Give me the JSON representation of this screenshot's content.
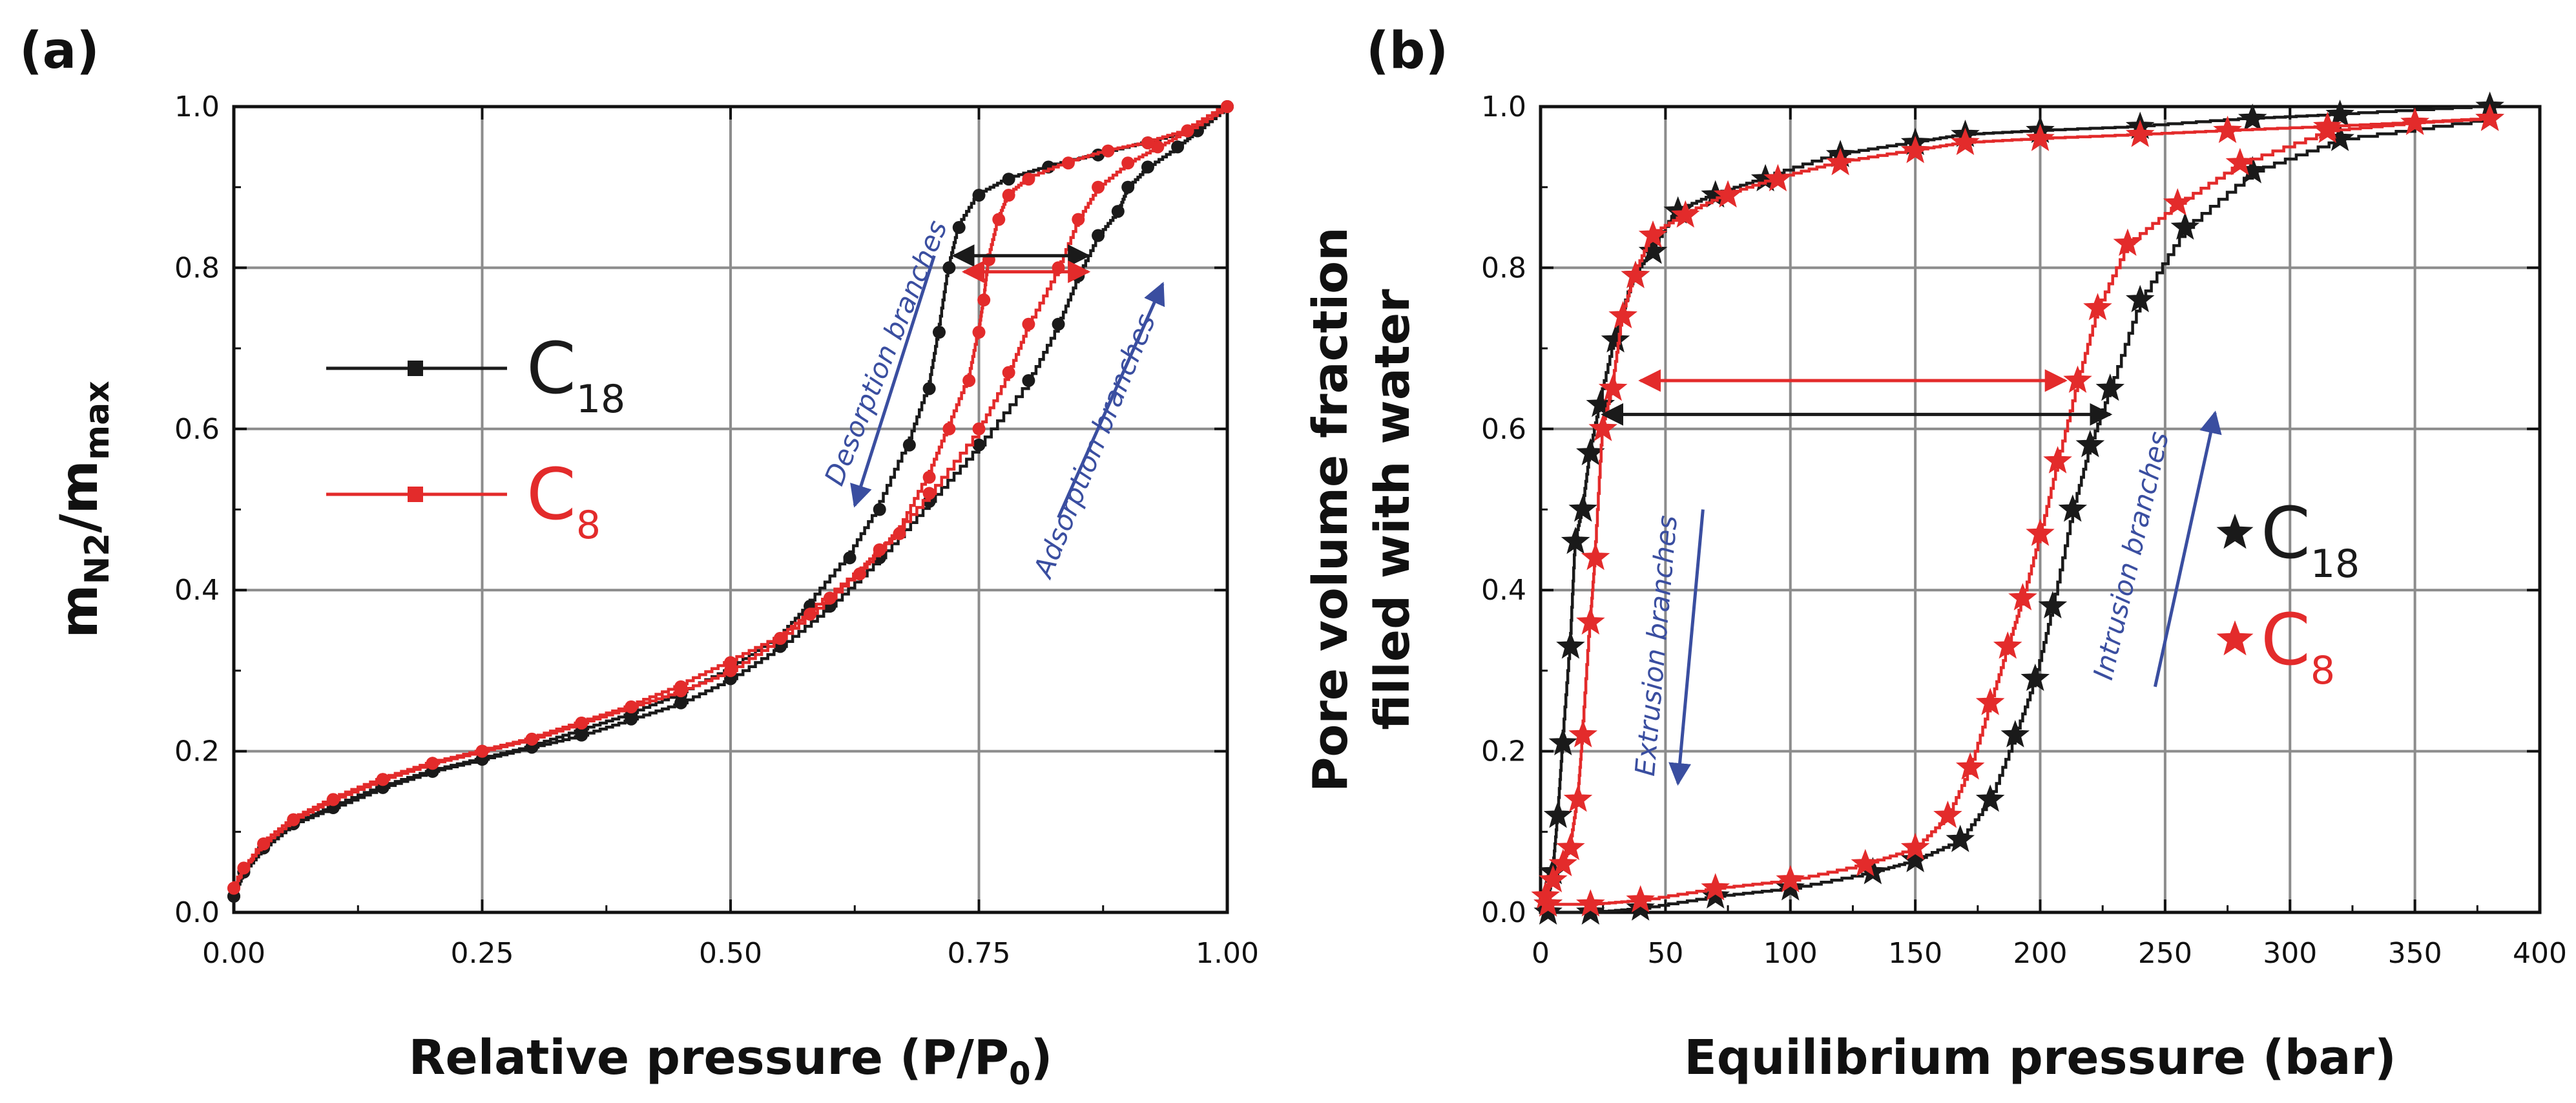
{
  "colors": {
    "c18": "#1a1a1a",
    "c8": "#e32b2b",
    "annotation": "#3a4ea0",
    "grid": "#8c8c8c"
  },
  "chart_data": [
    {
      "panel_label": "(a)",
      "type": "line",
      "title": "",
      "xlabel": "Relative pressure (P/P0)",
      "ylabel": "mN2/mmax",
      "xlabel_parts": {
        "main": "Relative pressure (P/P",
        "sub": "0",
        "end": ")"
      },
      "ylabel_parts": {
        "main": "m",
        "sub1": "N2",
        "mid": "/m",
        "sub2": "max"
      },
      "xlim": [
        0,
        1
      ],
      "ylim": [
        0,
        1
      ],
      "xticks": [
        "0.00",
        "0.25",
        "0.50",
        "0.75",
        "1.00"
      ],
      "yticks": [
        "0.0",
        "0.2",
        "0.4",
        "0.6",
        "0.8",
        "1.0"
      ],
      "grid": true,
      "legend": {
        "position": "middle-left",
        "entries": [
          {
            "series": "C18",
            "base": "C",
            "sub": "18"
          },
          {
            "series": "C8",
            "base": "C",
            "sub": "8"
          }
        ]
      },
      "series": [
        {
          "name": "C18 adsorption",
          "color_key": "c18",
          "x": [
            0.0,
            0.01,
            0.03,
            0.06,
            0.1,
            0.15,
            0.2,
            0.25,
            0.3,
            0.35,
            0.4,
            0.45,
            0.5,
            0.55,
            0.6,
            0.65,
            0.7,
            0.75,
            0.8,
            0.83,
            0.85,
            0.87,
            0.89,
            0.9,
            0.92,
            0.95,
            0.97,
            1.0
          ],
          "y": [
            0.02,
            0.05,
            0.08,
            0.11,
            0.13,
            0.155,
            0.175,
            0.19,
            0.205,
            0.22,
            0.24,
            0.26,
            0.29,
            0.33,
            0.38,
            0.44,
            0.51,
            0.58,
            0.66,
            0.73,
            0.79,
            0.84,
            0.87,
            0.9,
            0.925,
            0.95,
            0.97,
            1.0
          ]
        },
        {
          "name": "C18 desorption",
          "color_key": "c18",
          "x": [
            1.0,
            0.97,
            0.92,
            0.87,
            0.82,
            0.78,
            0.75,
            0.73,
            0.72,
            0.71,
            0.7,
            0.68,
            0.65,
            0.62,
            0.58,
            0.55,
            0.5,
            0.45,
            0.4,
            0.35,
            0.3,
            0.25,
            0.2,
            0.15,
            0.1,
            0.06,
            0.03,
            0.01,
            0.0
          ],
          "y": [
            1.0,
            0.97,
            0.955,
            0.94,
            0.925,
            0.91,
            0.89,
            0.85,
            0.8,
            0.72,
            0.65,
            0.58,
            0.5,
            0.44,
            0.38,
            0.34,
            0.3,
            0.27,
            0.245,
            0.225,
            0.205,
            0.19,
            0.175,
            0.155,
            0.13,
            0.11,
            0.08,
            0.05,
            0.02
          ]
        },
        {
          "name": "C8 adsorption",
          "color_key": "c8",
          "x": [
            0.0,
            0.01,
            0.03,
            0.06,
            0.1,
            0.15,
            0.2,
            0.25,
            0.3,
            0.35,
            0.4,
            0.45,
            0.5,
            0.55,
            0.6,
            0.65,
            0.7,
            0.75,
            0.78,
            0.8,
            0.83,
            0.85,
            0.87,
            0.9,
            0.93,
            0.96,
            1.0
          ],
          "y": [
            0.03,
            0.055,
            0.085,
            0.115,
            0.14,
            0.165,
            0.185,
            0.2,
            0.215,
            0.235,
            0.255,
            0.275,
            0.3,
            0.34,
            0.39,
            0.45,
            0.52,
            0.6,
            0.67,
            0.73,
            0.8,
            0.86,
            0.9,
            0.93,
            0.95,
            0.97,
            1.0
          ]
        },
        {
          "name": "C8 desorption",
          "color_key": "c8",
          "x": [
            1.0,
            0.96,
            0.92,
            0.88,
            0.84,
            0.8,
            0.78,
            0.77,
            0.76,
            0.755,
            0.75,
            0.74,
            0.72,
            0.7,
            0.67,
            0.63,
            0.58,
            0.55,
            0.5,
            0.45,
            0.4,
            0.35,
            0.3,
            0.25,
            0.2,
            0.15,
            0.1,
            0.06,
            0.03,
            0.0
          ],
          "y": [
            1.0,
            0.97,
            0.955,
            0.945,
            0.93,
            0.91,
            0.89,
            0.86,
            0.81,
            0.76,
            0.72,
            0.66,
            0.6,
            0.54,
            0.47,
            0.42,
            0.37,
            0.34,
            0.31,
            0.28,
            0.255,
            0.235,
            0.215,
            0.2,
            0.185,
            0.165,
            0.14,
            0.115,
            0.085,
            0.03
          ]
        }
      ],
      "arrows": [
        {
          "color_key": "c18",
          "from": [
            0.86,
            0.815
          ],
          "to": [
            0.725,
            0.815
          ],
          "kind": "double"
        },
        {
          "color_key": "c8",
          "from": [
            0.86,
            0.795
          ],
          "to": [
            0.735,
            0.795
          ],
          "kind": "double"
        },
        {
          "color_key": "annotation",
          "from": [
            0.705,
            0.815
          ],
          "to": [
            0.625,
            0.505
          ],
          "kind": "single"
        },
        {
          "color_key": "annotation",
          "from": [
            0.83,
            0.49
          ],
          "to": [
            0.935,
            0.78
          ],
          "kind": "single"
        }
      ],
      "annotations": [
        {
          "text": "Desorption branches",
          "x": 0.665,
          "y": 0.69,
          "angle": -68
        },
        {
          "text": "Adsorption branches",
          "x": 0.875,
          "y": 0.575,
          "angle": -68
        }
      ]
    },
    {
      "panel_label": "(b)",
      "type": "line",
      "title": "",
      "xlabel": "Equilibrium pressure (bar)",
      "ylabel": "Pore volume fraction filled with water",
      "ylabel_lines": [
        "Pore volume fraction",
        "filled with water"
      ],
      "xlim": [
        0,
        400
      ],
      "ylim": [
        0,
        1
      ],
      "xticks": [
        "0",
        "50",
        "100",
        "150",
        "200",
        "250",
        "300",
        "350",
        "400"
      ],
      "yticks": [
        "0.0",
        "0.2",
        "0.4",
        "0.6",
        "0.8",
        "1.0"
      ],
      "grid": true,
      "legend": {
        "position": "middle-right",
        "entries": [
          {
            "series": "C18",
            "base": "C",
            "sub": "18"
          },
          {
            "series": "C8",
            "base": "C",
            "sub": "8"
          }
        ]
      },
      "series": [
        {
          "name": "C18 intrusion",
          "color_key": "c18",
          "x": [
            3,
            20,
            40,
            70,
            100,
            133,
            150,
            168,
            180,
            190,
            198,
            205,
            213,
            220,
            228,
            240,
            258,
            285,
            320,
            380
          ],
          "y": [
            0.0,
            0.0,
            0.005,
            0.02,
            0.03,
            0.05,
            0.065,
            0.09,
            0.14,
            0.22,
            0.29,
            0.38,
            0.5,
            0.58,
            0.65,
            0.76,
            0.85,
            0.92,
            0.96,
            0.985
          ]
        },
        {
          "name": "C18 extrusion",
          "color_key": "c18",
          "x": [
            380,
            320,
            285,
            240,
            200,
            170,
            150,
            120,
            90,
            70,
            55,
            45,
            38,
            30,
            24,
            20,
            17,
            14,
            12,
            9,
            7,
            5,
            3
          ],
          "y": [
            1.0,
            0.99,
            0.985,
            0.975,
            0.97,
            0.965,
            0.955,
            0.94,
            0.91,
            0.89,
            0.87,
            0.82,
            0.79,
            0.71,
            0.63,
            0.57,
            0.5,
            0.46,
            0.33,
            0.21,
            0.12,
            0.05,
            0.01
          ]
        },
        {
          "name": "C8 intrusion",
          "color_key": "c8",
          "x": [
            3,
            20,
            40,
            70,
            100,
            130,
            150,
            163,
            172,
            180,
            187,
            193,
            200,
            207,
            215,
            223,
            235,
            255,
            280,
            315,
            350,
            380
          ],
          "y": [
            0.01,
            0.01,
            0.015,
            0.03,
            0.04,
            0.06,
            0.08,
            0.12,
            0.18,
            0.26,
            0.33,
            0.39,
            0.47,
            0.56,
            0.66,
            0.75,
            0.83,
            0.88,
            0.93,
            0.97,
            0.98,
            0.985
          ]
        },
        {
          "name": "C8 extrusion",
          "color_key": "c8",
          "x": [
            380,
            350,
            315,
            275,
            240,
            200,
            170,
            150,
            120,
            95,
            75,
            58,
            45,
            38,
            33,
            29,
            25,
            22,
            20,
            17,
            15,
            12,
            9,
            5,
            2
          ],
          "y": [
            0.985,
            0.98,
            0.975,
            0.97,
            0.965,
            0.96,
            0.955,
            0.945,
            0.93,
            0.91,
            0.89,
            0.865,
            0.84,
            0.79,
            0.74,
            0.65,
            0.6,
            0.44,
            0.36,
            0.22,
            0.14,
            0.08,
            0.06,
            0.04,
            0.02
          ]
        }
      ],
      "arrows": [
        {
          "color_key": "c18",
          "from": [
            25,
            0.618
          ],
          "to": [
            228,
            0.618
          ],
          "kind": "double"
        },
        {
          "color_key": "c8",
          "from": [
            40,
            0.66
          ],
          "to": [
            210,
            0.66
          ],
          "kind": "double"
        },
        {
          "color_key": "annotation",
          "from": [
            65,
            0.5
          ],
          "to": [
            55,
            0.16
          ],
          "kind": "single"
        },
        {
          "color_key": "annotation",
          "from": [
            246,
            0.28
          ],
          "to": [
            270,
            0.62
          ],
          "kind": "single"
        }
      ],
      "annotations": [
        {
          "text": "Extrusion branches",
          "x": 50,
          "y": 0.33,
          "angle": -85
        },
        {
          "text": "Intrusion branches",
          "x": 240,
          "y": 0.44,
          "angle": -77
        }
      ]
    }
  ]
}
